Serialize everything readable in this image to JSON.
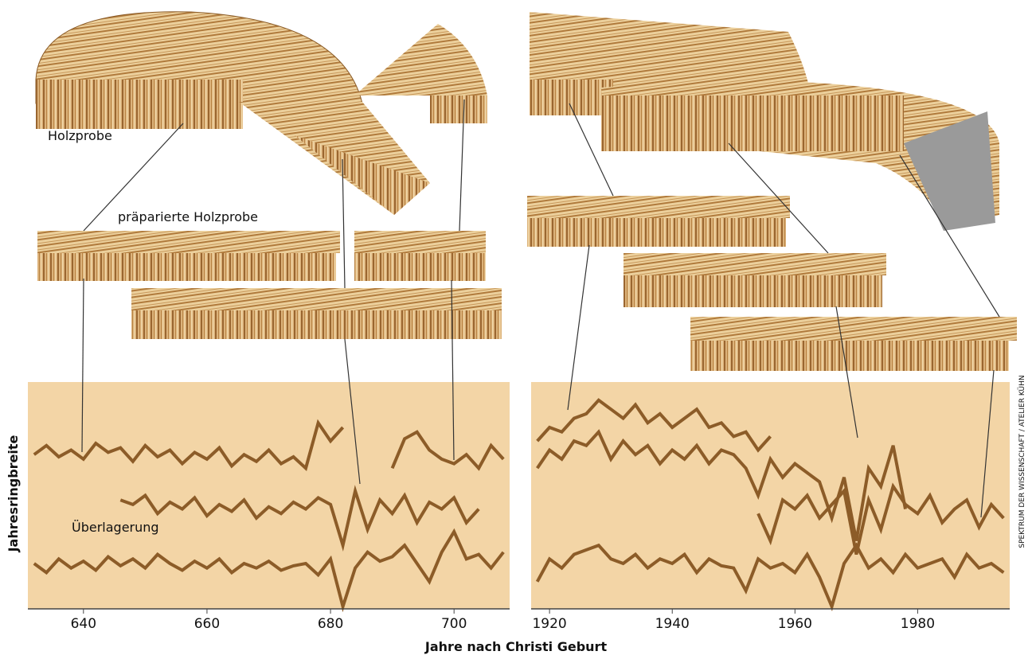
{
  "labels": {
    "y_label": "Jahresringbreite",
    "x_label": "Jahre nach Christi Geburt",
    "sample": "Holzprobe",
    "prepared": "präparierte Holzprobe",
    "overlay": "Überlagerung",
    "credit": "SPEKTRUM DER WISSENSCHAFT / ATELIER KÜHN"
  },
  "chart_data": [
    {
      "type": "line",
      "xlim": [
        631,
        709
      ],
      "xticks": [
        640,
        660,
        680,
        700
      ],
      "ylim": [
        0,
        100
      ],
      "background": "#f3d5a6",
      "series": [
        {
          "color": "#8c5c28",
          "x": [
            632,
            634,
            636,
            638,
            640,
            642,
            644,
            646,
            648,
            650,
            652,
            654,
            656,
            658,
            660,
            662,
            664,
            666,
            668,
            670,
            672,
            674,
            676,
            678,
            680,
            682
          ],
          "values": [
            68,
            72,
            67,
            70,
            66,
            73,
            69,
            71,
            65,
            72,
            67,
            70,
            64,
            69,
            66,
            71,
            63,
            68,
            65,
            70,
            64,
            67,
            62,
            82,
            74,
            80
          ]
        },
        {
          "color": "#8c5c28",
          "x": [
            690,
            692,
            694,
            696,
            698,
            700,
            702,
            704,
            706,
            708
          ],
          "values": [
            62,
            75,
            78,
            70,
            66,
            64,
            68,
            62,
            72,
            66
          ]
        },
        {
          "color": "#8c5c28",
          "x": [
            646,
            648,
            650,
            652,
            654,
            656,
            658,
            660,
            662,
            664,
            666,
            668,
            670,
            672,
            674,
            676,
            678,
            680,
            682,
            684,
            686,
            688,
            690,
            692,
            694,
            696,
            698,
            700,
            702,
            704
          ],
          "values": [
            48,
            46,
            50,
            42,
            47,
            44,
            49,
            41,
            46,
            43,
            48,
            40,
            45,
            42,
            47,
            44,
            49,
            46,
            28,
            52,
            35,
            48,
            42,
            50,
            38,
            47,
            44,
            49,
            38,
            44
          ]
        },
        {
          "color": "#8c5c28",
          "x": [
            632,
            634,
            636,
            638,
            640,
            642,
            644,
            646,
            648,
            650,
            652,
            654,
            656,
            658,
            660,
            662,
            664,
            666,
            668,
            670,
            672,
            674,
            676,
            678,
            680,
            682,
            684,
            686,
            688,
            690,
            692,
            694,
            696,
            698,
            700,
            702,
            704,
            706,
            708
          ],
          "values": [
            20,
            16,
            22,
            18,
            21,
            17,
            23,
            19,
            22,
            18,
            24,
            20,
            17,
            21,
            18,
            22,
            16,
            20,
            18,
            21,
            17,
            19,
            20,
            15,
            22,
            1,
            18,
            25,
            21,
            23,
            28,
            20,
            12,
            25,
            34,
            22,
            24,
            18,
            25
          ]
        }
      ]
    },
    {
      "type": "line",
      "xlim": [
        1917,
        1995
      ],
      "xticks": [
        1920,
        1940,
        1960,
        1980
      ],
      "ylim": [
        0,
        100
      ],
      "background": "#f3d5a6",
      "series": [
        {
          "color": "#8c5c28",
          "x": [
            1918,
            1920,
            1922,
            1924,
            1926,
            1928,
            1930,
            1932,
            1934,
            1936,
            1938,
            1940,
            1942,
            1944,
            1946,
            1948,
            1950,
            1952,
            1954,
            1956
          ],
          "values": [
            74,
            80,
            78,
            84,
            86,
            92,
            88,
            84,
            90,
            82,
            86,
            80,
            84,
            88,
            80,
            82,
            76,
            78,
            70,
            76
          ]
        },
        {
          "color": "#8c5c28",
          "x": [
            1918,
            1920,
            1922,
            1924,
            1926,
            1928,
            1930,
            1932,
            1934,
            1936,
            1938,
            1940,
            1942,
            1944,
            1946,
            1948,
            1950,
            1952,
            1954,
            1956,
            1958,
            1960,
            1962,
            1964,
            1966,
            1968,
            1970,
            1972,
            1974,
            1976,
            1978
          ],
          "values": [
            62,
            70,
            66,
            74,
            72,
            78,
            66,
            74,
            68,
            72,
            64,
            70,
            66,
            72,
            64,
            70,
            68,
            62,
            50,
            66,
            58,
            64,
            60,
            56,
            40,
            58,
            30,
            62,
            54,
            72,
            44
          ]
        },
        {
          "color": "#8c5c28",
          "x": [
            1954,
            1956,
            1958,
            1960,
            1962,
            1964,
            1966,
            1968,
            1970,
            1972,
            1974,
            1976,
            1978,
            1980,
            1982,
            1984,
            1986,
            1988,
            1990,
            1992,
            1994
          ],
          "values": [
            42,
            30,
            48,
            44,
            50,
            40,
            46,
            52,
            24,
            48,
            35,
            54,
            46,
            42,
            50,
            38,
            44,
            48,
            36,
            46,
            40
          ]
        },
        {
          "color": "#8c5c28",
          "x": [
            1918,
            1920,
            1922,
            1924,
            1926,
            1928,
            1930,
            1932,
            1934,
            1936,
            1938,
            1940,
            1942,
            1944,
            1946,
            1948,
            1950,
            1952,
            1954,
            1956,
            1958,
            1960,
            1962,
            1964,
            1966,
            1968,
            1970,
            1972,
            1974,
            1976,
            1978,
            1980,
            1982,
            1984,
            1986,
            1988,
            1990,
            1992,
            1994
          ],
          "values": [
            12,
            22,
            18,
            24,
            26,
            28,
            22,
            20,
            24,
            18,
            22,
            20,
            24,
            16,
            22,
            19,
            18,
            8,
            22,
            18,
            20,
            16,
            24,
            14,
            1,
            20,
            28,
            18,
            22,
            16,
            24,
            18,
            20,
            22,
            14,
            24,
            18,
            20,
            16
          ]
        }
      ]
    }
  ]
}
